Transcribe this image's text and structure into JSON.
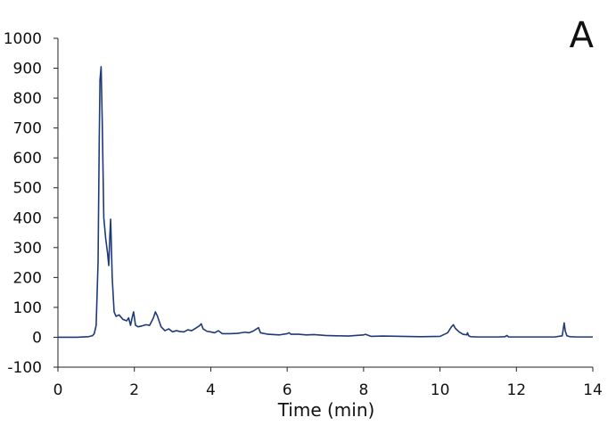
{
  "panel_label": "A",
  "colors": {
    "trace": "#1f3a78",
    "axis": "#222222"
  },
  "chart_data": {
    "type": "line",
    "title": "",
    "xlabel": "Time (min)",
    "ylabel": "",
    "xlim": [
      0,
      14
    ],
    "ylim": [
      -100,
      1000
    ],
    "xticks": [
      0,
      2,
      4,
      6,
      8,
      10,
      12,
      14
    ],
    "yticks": [
      -100,
      0,
      100,
      200,
      300,
      400,
      500,
      600,
      700,
      800,
      900,
      1000
    ],
    "grid": false,
    "legend": "none",
    "series": [
      {
        "x": [
          0,
          0.5,
          0.8,
          0.9,
          0.95,
          1.0,
          1.05,
          1.08,
          1.1,
          1.13,
          1.16,
          1.2,
          1.25,
          1.3,
          1.33,
          1.36,
          1.38,
          1.42,
          1.47,
          1.52,
          1.6,
          1.7,
          1.8,
          1.85,
          1.9,
          1.95,
          1.98,
          2.03,
          2.1,
          2.2,
          2.3,
          2.4,
          2.5,
          2.55,
          2.6,
          2.7,
          2.8,
          2.9,
          3.0,
          3.1,
          3.2,
          3.3,
          3.4,
          3.5,
          3.6,
          3.7,
          3.75,
          3.8,
          3.9,
          4.0,
          4.1,
          4.2,
          4.3,
          4.5,
          4.7,
          4.9,
          5.0,
          5.1,
          5.2,
          5.25,
          5.3,
          5.5,
          5.8,
          6.0,
          6.05,
          6.1,
          6.3,
          6.5,
          6.7,
          7.0,
          7.3,
          7.6,
          8.0,
          8.05,
          8.2,
          8.5,
          9.0,
          9.5,
          10.0,
          10.2,
          10.3,
          10.35,
          10.4,
          10.5,
          10.6,
          10.7,
          10.72,
          10.75,
          10.8,
          11.0,
          11.5,
          11.7,
          11.75,
          11.8,
          12.0,
          12.5,
          13.0,
          13.2,
          13.25,
          13.28,
          13.32,
          13.4,
          13.6,
          14.0
        ],
        "values": [
          0,
          0,
          2,
          5,
          12,
          40,
          250,
          650,
          860,
          905,
          720,
          400,
          330,
          280,
          240,
          345,
          395,
          200,
          85,
          70,
          75,
          60,
          55,
          65,
          40,
          70,
          85,
          40,
          35,
          38,
          42,
          40,
          65,
          85,
          72,
          35,
          22,
          28,
          18,
          22,
          19,
          18,
          25,
          22,
          30,
          38,
          45,
          28,
          20,
          18,
          15,
          22,
          12,
          12,
          13,
          17,
          15,
          20,
          28,
          32,
          15,
          10,
          8,
          12,
          15,
          10,
          10,
          8,
          9,
          6,
          5,
          4,
          8,
          10,
          3,
          4,
          3,
          2,
          3,
          15,
          35,
          42,
          30,
          18,
          10,
          8,
          15,
          5,
          2,
          1,
          1,
          2,
          6,
          1,
          1,
          1,
          1,
          5,
          48,
          20,
          5,
          2,
          1,
          1
        ]
      }
    ]
  }
}
